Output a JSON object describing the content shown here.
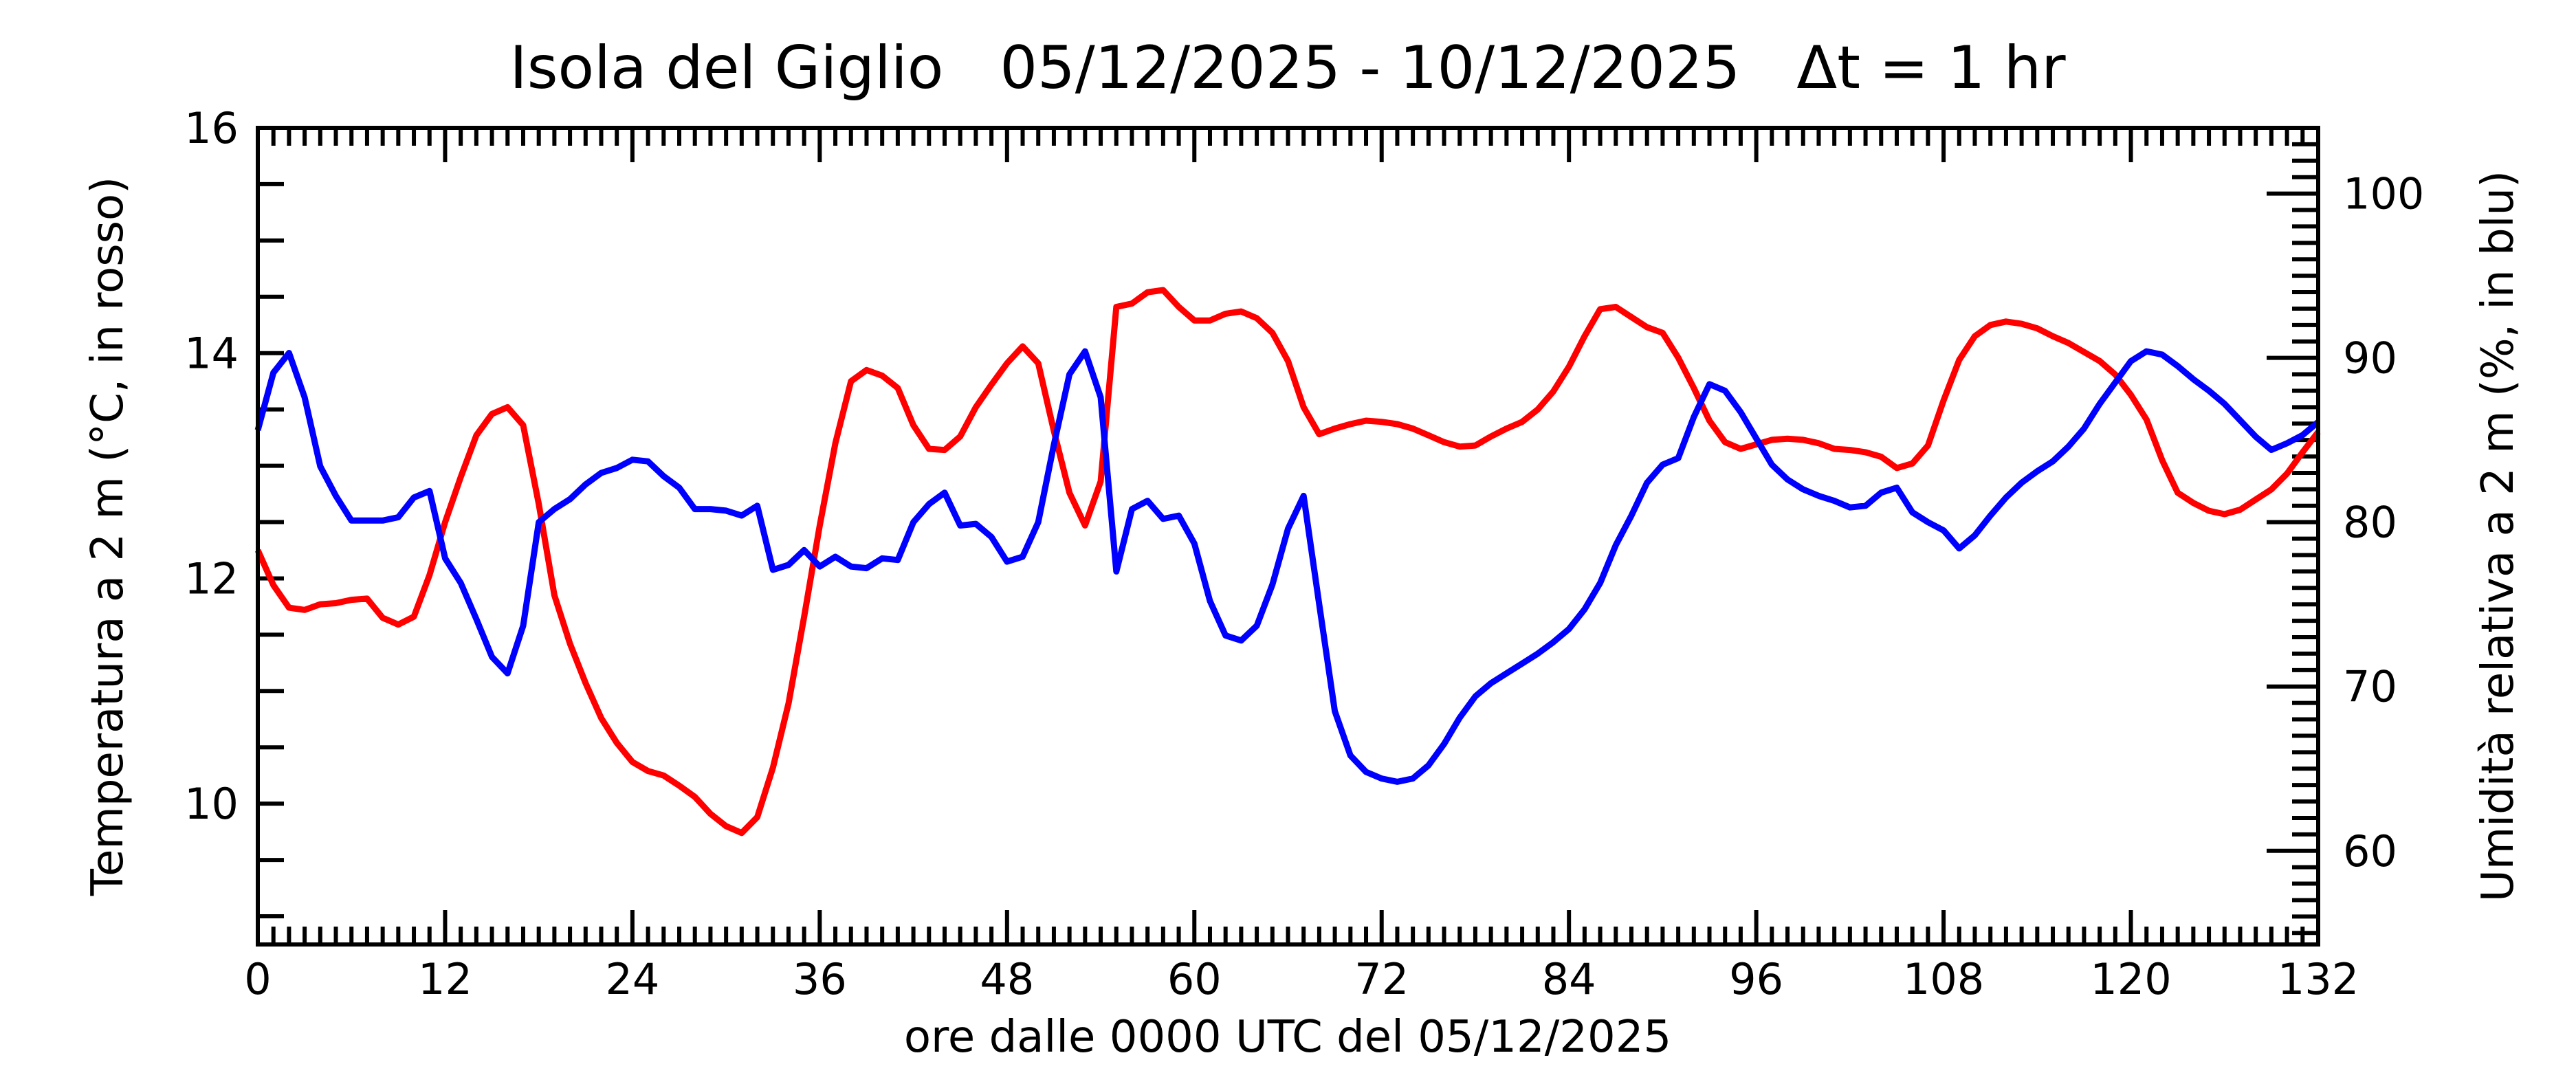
{
  "chart_data": {
    "type": "line",
    "title": "Isola del Giglio   05/12/2025 - 10/12/2025   Δt = 1 hr",
    "xlabel": "ore dalle 0000 UTC del 05/12/2025",
    "ylabel_left": "Temperatura a 2 m (°C, in rosso)",
    "ylabel_right": "Umidità relativa a 2 m (%, in blu)",
    "xlim": [
      0,
      132
    ],
    "ylim_left": [
      8.75,
      16
    ],
    "ylim_right": [
      54.3,
      104
    ],
    "xticks": [
      0,
      12,
      24,
      36,
      48,
      60,
      72,
      84,
      96,
      108,
      120,
      132
    ],
    "yticks_left": [
      10,
      12,
      14,
      16
    ],
    "yticks_right": [
      60,
      70,
      80,
      90,
      100
    ],
    "grid": false,
    "colors": {
      "temperature": "#ff0000",
      "humidity": "#0000ff",
      "axes": "#000000"
    },
    "x": [
      0,
      1,
      2,
      3,
      4,
      5,
      6,
      7,
      8,
      9,
      10,
      11,
      12,
      13,
      14,
      15,
      16,
      17,
      18,
      19,
      20,
      21,
      22,
      23,
      24,
      25,
      26,
      27,
      28,
      29,
      30,
      31,
      32,
      33,
      34,
      35,
      36,
      37,
      38,
      39,
      40,
      41,
      42,
      43,
      44,
      45,
      46,
      47,
      48,
      49,
      50,
      51,
      52,
      53,
      54,
      55,
      56,
      57,
      58,
      59,
      60,
      61,
      62,
      63,
      64,
      65,
      66,
      67,
      68,
      69,
      70,
      71,
      72,
      73,
      74,
      75,
      76,
      77,
      78,
      79,
      80,
      81,
      82,
      83,
      84,
      85,
      86,
      87,
      88,
      89,
      90,
      91,
      92,
      93,
      94,
      95,
      96,
      97,
      98,
      99,
      100,
      101,
      102,
      103,
      104,
      105,
      106,
      107,
      108,
      109,
      110,
      111,
      112,
      113,
      114,
      115,
      116,
      117,
      118,
      119,
      120,
      121,
      122,
      123,
      124,
      125,
      126,
      127,
      128,
      129,
      130,
      131,
      132
    ],
    "series": [
      {
        "axis": "left",
        "color": "#ff0000",
        "values": [
          12.25,
          11.94,
          11.74,
          11.72,
          11.77,
          11.78,
          11.81,
          11.82,
          11.65,
          11.59,
          11.66,
          12.03,
          12.5,
          12.9,
          13.27,
          13.46,
          13.52,
          13.36,
          12.66,
          11.85,
          11.42,
          11.07,
          10.76,
          10.54,
          10.37,
          10.29,
          10.25,
          10.16,
          10.06,
          9.91,
          9.8,
          9.74,
          9.88,
          10.32,
          10.89,
          11.66,
          12.47,
          13.2,
          13.75,
          13.85,
          13.8,
          13.69,
          13.36,
          13.15,
          13.14,
          13.26,
          13.52,
          13.72,
          13.91,
          14.06,
          13.91,
          13.31,
          12.76,
          12.47,
          12.86,
          14.41,
          14.44,
          14.54,
          14.56,
          14.41,
          14.29,
          14.29,
          14.35,
          14.37,
          14.31,
          14.18,
          13.93,
          13.52,
          13.28,
          13.33,
          13.37,
          13.4,
          13.39,
          13.37,
          13.33,
          13.27,
          13.21,
          13.17,
          13.18,
          13.26,
          13.33,
          13.39,
          13.5,
          13.66,
          13.88,
          14.15,
          14.39,
          14.41,
          14.32,
          14.23,
          14.18,
          13.96,
          13.69,
          13.4,
          13.21,
          13.15,
          13.19,
          13.23,
          13.24,
          13.23,
          13.2,
          13.15,
          13.14,
          13.12,
          13.08,
          12.98,
          13.02,
          13.18,
          13.58,
          13.94,
          14.15,
          14.25,
          14.28,
          14.26,
          14.22,
          14.15,
          14.09,
          14.01,
          13.93,
          13.81,
          13.63,
          13.41,
          13.05,
          12.76,
          12.67,
          12.6,
          12.57,
          12.61,
          12.7,
          12.79,
          12.93,
          13.12,
          13.3
        ]
      },
      {
        "axis": "right",
        "color": "#0000ff",
        "values": [
          85.6,
          89.1,
          90.3,
          87.6,
          83.4,
          81.6,
          80.1,
          80.1,
          80.1,
          80.3,
          81.5,
          81.9,
          77.8,
          76.3,
          74.1,
          71.8,
          70.8,
          73.7,
          80.0,
          80.8,
          81.4,
          82.3,
          83.0,
          83.3,
          83.8,
          83.7,
          82.8,
          82.1,
          80.8,
          80.8,
          80.7,
          80.4,
          81.0,
          77.1,
          77.4,
          78.3,
          77.3,
          77.9,
          77.3,
          77.2,
          77.8,
          77.7,
          80.0,
          81.1,
          81.8,
          79.8,
          79.9,
          79.1,
          77.6,
          77.9,
          80.0,
          84.7,
          89.0,
          90.4,
          87.6,
          77.0,
          80.8,
          81.3,
          80.2,
          80.4,
          78.7,
          75.2,
          73.1,
          72.8,
          73.7,
          76.2,
          79.6,
          81.6,
          75.0,
          68.5,
          65.8,
          64.8,
          64.4,
          64.2,
          64.4,
          65.2,
          66.5,
          68.1,
          69.4,
          70.2,
          70.8,
          71.4,
          72.0,
          72.7,
          73.5,
          74.7,
          76.3,
          78.6,
          80.4,
          82.4,
          83.5,
          83.9,
          86.4,
          88.4,
          88.0,
          86.7,
          85.1,
          83.5,
          82.6,
          82.0,
          81.6,
          81.3,
          80.9,
          81.0,
          81.8,
          82.1,
          80.6,
          80.0,
          79.5,
          78.4,
          79.2,
          80.4,
          81.5,
          82.4,
          83.1,
          83.7,
          84.6,
          85.7,
          87.2,
          88.5,
          89.8,
          90.4,
          90.2,
          89.5,
          88.7,
          88.0,
          87.2,
          86.2,
          85.2,
          84.4,
          84.8,
          85.3,
          86.1
        ]
      }
    ]
  }
}
